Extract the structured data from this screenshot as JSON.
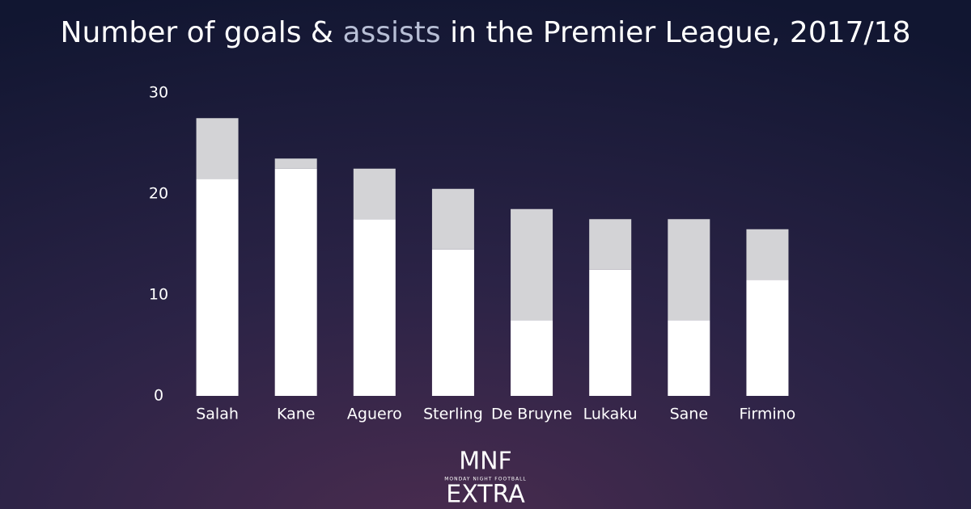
{
  "chart_data": {
    "type": "stacked_bar",
    "title_prefix": "Number of",
    "title_joiner": "&",
    "title_suffix": "in the Premier League, 2017/18",
    "categories": [
      "Salah",
      "Kane",
      "Aguero",
      "Sterling",
      "De Bruyne",
      "Lukaku",
      "Sane",
      "Firmino"
    ],
    "series": [
      {
        "name": "goals",
        "color": "#ffffff",
        "values": [
          21.5,
          22.5,
          17.5,
          14.5,
          7.5,
          12.5,
          7.5,
          11.5
        ]
      },
      {
        "name": "assists",
        "color": "#d3d3d6",
        "values": [
          6,
          1,
          5,
          6,
          11,
          5,
          10,
          5
        ]
      }
    ],
    "ylim": [
      0,
      30
    ],
    "yticks": [
      0,
      10,
      20,
      30
    ],
    "grid": false
  },
  "logo": {
    "top": "MNF",
    "middle": "MONDAY NIGHT FOOTBALL",
    "bottom": "EXTRA"
  }
}
